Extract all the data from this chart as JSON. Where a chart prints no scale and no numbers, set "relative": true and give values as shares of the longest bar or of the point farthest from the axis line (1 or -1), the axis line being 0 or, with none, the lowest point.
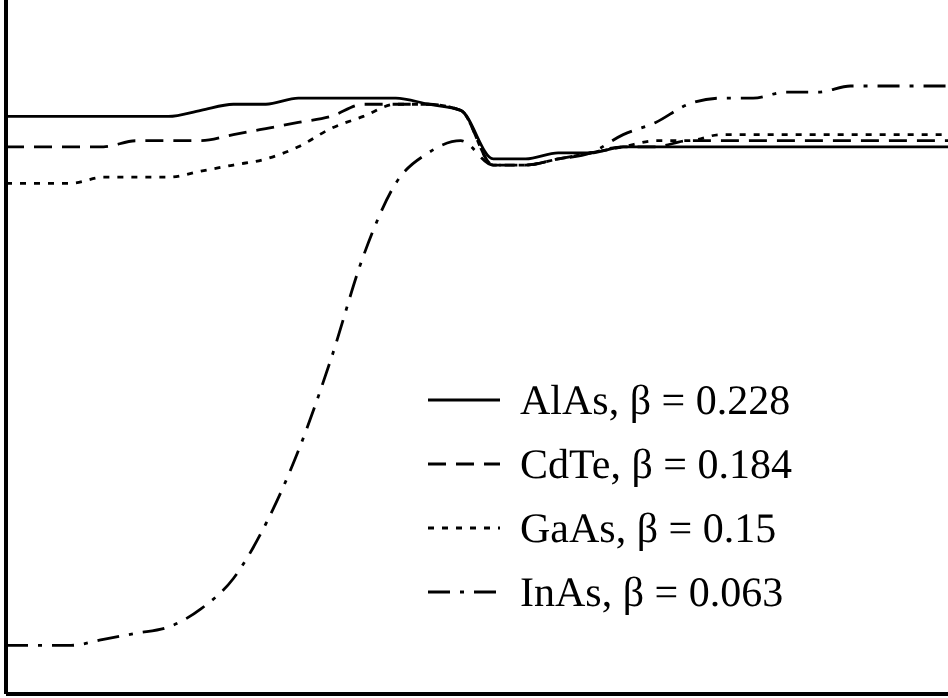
{
  "chart_data": {
    "type": "line",
    "relative": true,
    "legend": "bottom right",
    "categories": [
      null,
      null,
      null,
      null,
      null,
      null,
      null,
      null,
      null,
      null,
      null,
      null,
      null,
      null,
      null,
      null,
      null,
      null,
      null,
      null,
      null,
      null,
      null,
      null,
      null,
      null,
      null,
      null,
      null,
      null
    ],
    "series": [
      {
        "name": "AlAs, β = 0.228",
        "color": "#000000",
        "line_style": "solid",
        "values": [
          0.95,
          0.95,
          0.95,
          0.95,
          0.95,
          0.95,
          0.96,
          0.97,
          0.97,
          0.98,
          0.98,
          0.98,
          0.98,
          0.97,
          0.96,
          0.88,
          0.88,
          0.89,
          0.89,
          0.9,
          0.9,
          0.9,
          0.9,
          0.9,
          0.9,
          0.9,
          0.9,
          0.9,
          0.9,
          0.9
        ]
      },
      {
        "name": "CdTe, β = 0.184",
        "color": "#000000",
        "line_style": "dashed",
        "values": [
          0.9,
          0.9,
          0.9,
          0.9,
          0.91,
          0.91,
          0.91,
          0.92,
          0.93,
          0.94,
          0.95,
          0.97,
          0.97,
          0.97,
          0.96,
          0.87,
          0.87,
          0.88,
          0.89,
          0.9,
          0.9,
          0.91,
          0.91,
          0.91,
          0.91,
          0.91,
          0.91,
          0.91,
          0.91,
          0.91
        ]
      },
      {
        "name": "GaAs, β = 0.15",
        "color": "#000000",
        "line_style": "dotted",
        "values": [
          0.84,
          0.84,
          0.84,
          0.85,
          0.85,
          0.85,
          0.86,
          0.87,
          0.88,
          0.9,
          0.93,
          0.95,
          0.97,
          0.97,
          0.96,
          0.87,
          0.87,
          0.88,
          0.89,
          0.9,
          0.91,
          0.91,
          0.92,
          0.92,
          0.92,
          0.92,
          0.92,
          0.92,
          0.92,
          0.92
        ]
      },
      {
        "name": "InAs, β = 0.063",
        "color": "#000000",
        "line_style": "dashdot",
        "values": [
          0.08,
          0.08,
          0.08,
          0.09,
          0.1,
          0.11,
          0.14,
          0.19,
          0.28,
          0.4,
          0.55,
          0.72,
          0.84,
          0.89,
          0.91,
          0.87,
          0.87,
          0.88,
          0.89,
          0.92,
          0.94,
          0.97,
          0.98,
          0.98,
          0.99,
          0.99,
          1,
          1,
          1,
          1
        ]
      }
    ]
  }
}
